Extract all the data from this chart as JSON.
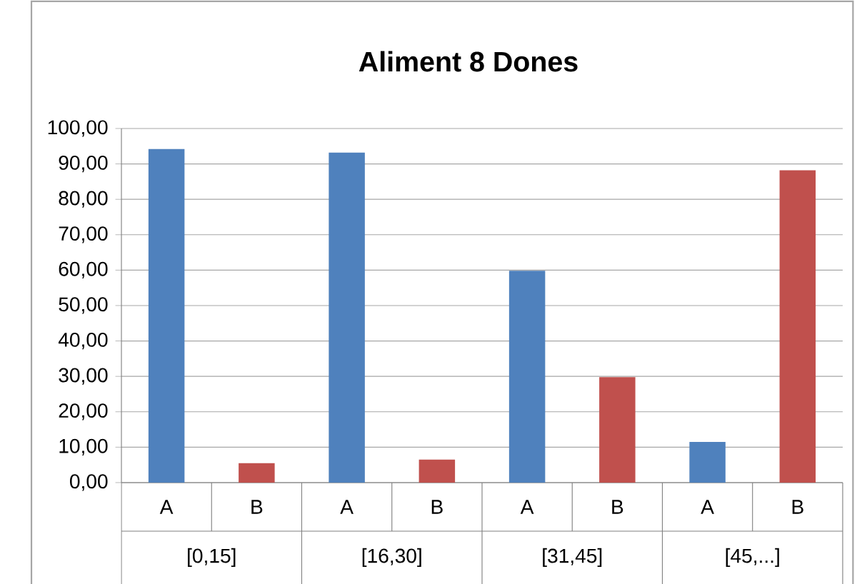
{
  "chart_data": {
    "type": "bar",
    "title": "Aliment 8 Dones",
    "categories": [
      "[0,15]",
      "[16,30]",
      "[31,45]",
      "[45,...]"
    ],
    "series": [
      {
        "name": "A",
        "color": "#4f81bd",
        "values": [
          94.2,
          93.2,
          59.8,
          11.5
        ]
      },
      {
        "name": "B",
        "color": "#c0504d",
        "values": [
          5.5,
          6.5,
          29.8,
          88.2
        ]
      }
    ],
    "ylim": [
      0,
      100
    ],
    "yticks": [
      {
        "value": 0,
        "label": "0,00"
      },
      {
        "value": 10,
        "label": "10,00"
      },
      {
        "value": 20,
        "label": "20,00"
      },
      {
        "value": 30,
        "label": "30,00"
      },
      {
        "value": 40,
        "label": "40,00"
      },
      {
        "value": 50,
        "label": "50,00"
      },
      {
        "value": 60,
        "label": "60,00"
      },
      {
        "value": 70,
        "label": "70,00"
      },
      {
        "value": 80,
        "label": "80,00"
      },
      {
        "value": 90,
        "label": "90,00"
      },
      {
        "value": 100,
        "label": "100,00"
      }
    ],
    "grid": "y"
  }
}
